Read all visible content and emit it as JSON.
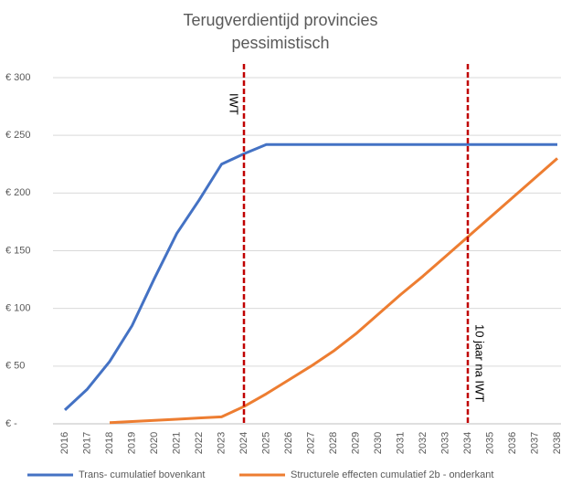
{
  "chart_data": {
    "type": "line",
    "title": "Terugverdientijd provincies pessimistisch",
    "categories": [
      "2016",
      "2017",
      "2018",
      "2019",
      "2020",
      "2021",
      "2022",
      "2023",
      "2024",
      "2025",
      "2026",
      "2027",
      "2028",
      "2029",
      "2030",
      "2031",
      "2032",
      "2033",
      "2034",
      "2035",
      "2036",
      "2037",
      "2038"
    ],
    "series": [
      {
        "name": "Trans- cumulatief bovenkant",
        "color": "#4472c4",
        "values": [
          12,
          30,
          54,
          85,
          126,
          165,
          194,
          225,
          234,
          242,
          242,
          242,
          242,
          242,
          242,
          242,
          242,
          242,
          242,
          242,
          242,
          242,
          242
        ]
      },
      {
        "name": "Structurele effecten cumulatief 2b - onderkant",
        "color": "#ed7d31",
        "values": [
          null,
          null,
          1,
          2,
          3,
          4,
          5,
          6,
          15,
          26,
          38,
          50,
          63,
          78,
          95,
          112,
          128,
          145,
          162,
          179,
          196,
          213,
          230
        ]
      }
    ],
    "ylim": [
      0,
      300
    ],
    "yticks": [
      {
        "value": 0,
        "label": "€ -"
      },
      {
        "value": 50,
        "label": "€ 50"
      },
      {
        "value": 100,
        "label": "€ 100"
      },
      {
        "value": 150,
        "label": "€ 150"
      },
      {
        "value": 200,
        "label": "€ 200"
      },
      {
        "value": 250,
        "label": "€ 250"
      },
      {
        "value": 300,
        "label": "€ 300"
      }
    ],
    "grid": true,
    "legend": "bottom",
    "annotations": [
      {
        "x": "2024",
        "label": "IWT",
        "color": "#c00000"
      },
      {
        "x": "2034",
        "label": "10 jaar na IWT",
        "color": "#c00000"
      }
    ]
  }
}
